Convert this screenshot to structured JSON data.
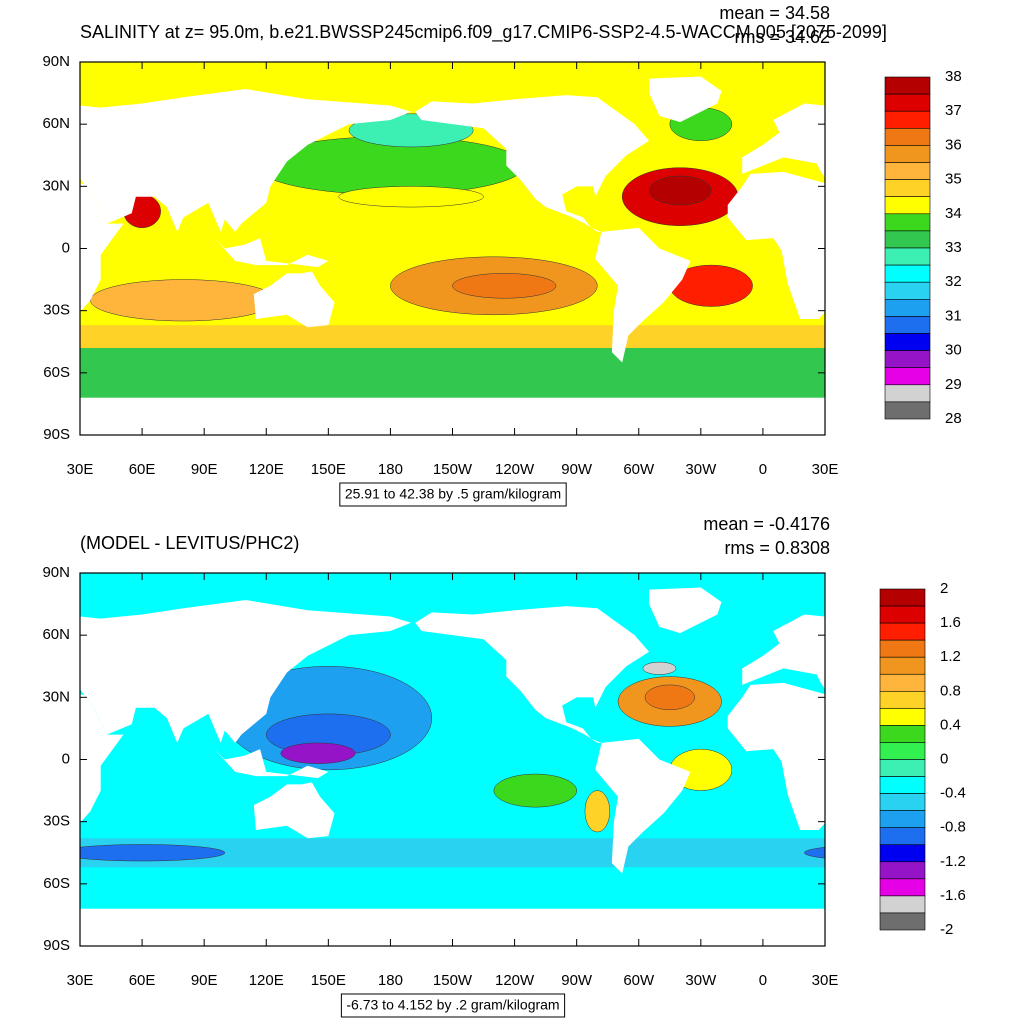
{
  "panels": [
    {
      "title": "SALINITY at z=  95.0m, b.e21.BWSSP245cmip6.f09_g17.CMIP6-SSP2-4.5-WACCM.005 [2075-2099]",
      "mean": "mean = 34.58",
      "rms": "rms = 34.62",
      "info": "25.91 to 42.38 by .5 gram/kilogram",
      "lat_labels": [
        "90N",
        "60N",
        "30N",
        "0",
        "30S",
        "60S",
        "90S"
      ],
      "lon_labels": [
        "30E",
        "60E",
        "90E",
        "120E",
        "150E",
        "180",
        "150W",
        "120W",
        "90W",
        "60W",
        "30W",
        "0",
        "30E"
      ],
      "colorbar": {
        "labels": [
          "38",
          "37",
          "36",
          "35",
          "34",
          "33",
          "32",
          "31",
          "30",
          "29",
          "28"
        ],
        "colors": [
          "#b40000",
          "#dc0000",
          "#ff1e00",
          "#f07814",
          "#f0961e",
          "#ffb43c",
          "#ffd228",
          "#ffff00",
          "#3cd81e",
          "#32c850",
          "#3cf0b4",
          "#00ffff",
          "#28d2f0",
          "#1ea0f0",
          "#1e6ef0",
          "#0000f0",
          "#9614c8",
          "#e600e6",
          "#d2d2d2",
          "#6e6e6e"
        ]
      }
    },
    {
      "title": "(MODEL - LEVITUS/PHC2)",
      "mean": "mean = -0.4176",
      "rms": "rms = 0.8308",
      "info": "-6.73 to 4.152 by .2 gram/kilogram",
      "lat_labels": [
        "90N",
        "60N",
        "30N",
        "0",
        "30S",
        "60S",
        "90S"
      ],
      "lon_labels": [
        "30E",
        "60E",
        "90E",
        "120E",
        "150E",
        "180",
        "150W",
        "120W",
        "90W",
        "60W",
        "30W",
        "0",
        "30E"
      ],
      "colorbar": {
        "labels": [
          "2",
          "1.6",
          "1.2",
          "0.8",
          "0.4",
          "0",
          "-0.4",
          "-0.8",
          "-1.2",
          "-1.6",
          "-2"
        ],
        "colors": [
          "#b40000",
          "#dc0000",
          "#ff1e00",
          "#f07814",
          "#f0961e",
          "#ffb43c",
          "#ffd228",
          "#ffff00",
          "#3cd81e",
          "#32f050",
          "#3cf0b4",
          "#00ffff",
          "#28d2f0",
          "#1ea0f0",
          "#1e6ef0",
          "#0000f0",
          "#9614c8",
          "#e600e6",
          "#d2d2d2",
          "#6e6e6e"
        ]
      }
    }
  ]
}
